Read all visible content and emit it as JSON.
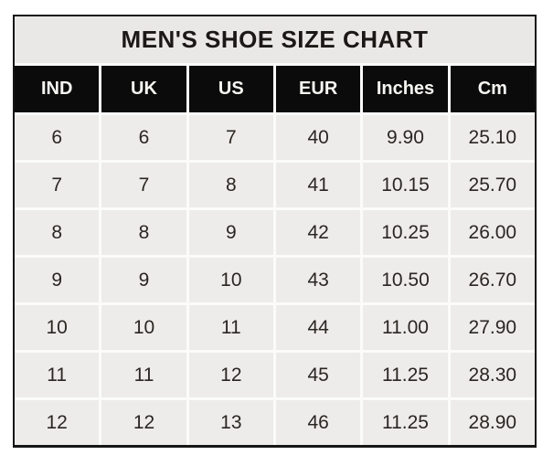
{
  "title": "MEN'S SHOE SIZE CHART",
  "chart_data": {
    "type": "table",
    "title": "MEN'S SHOE SIZE CHART",
    "columns": [
      "IND",
      "UK",
      "US",
      "EUR",
      "Inches",
      "Cm"
    ],
    "rows": [
      [
        "6",
        "6",
        "7",
        "40",
        "9.90",
        "25.10"
      ],
      [
        "7",
        "7",
        "8",
        "41",
        "10.15",
        "25.70"
      ],
      [
        "8",
        "8",
        "9",
        "42",
        "10.25",
        "26.00"
      ],
      [
        "9",
        "9",
        "10",
        "43",
        "10.50",
        "26.70"
      ],
      [
        "10",
        "10",
        "11",
        "44",
        "11.00",
        "27.90"
      ],
      [
        "11",
        "11",
        "12",
        "45",
        "11.25",
        "28.30"
      ],
      [
        "12",
        "12",
        "13",
        "46",
        "11.25",
        "28.90"
      ]
    ]
  },
  "colors": {
    "border": "#161616",
    "grid_line": "#fbfbfb",
    "title_bg": "#e9e8e6",
    "title_text": "#1b1815",
    "header_bg": "#0b0b0b",
    "header_text": "#f7f5f1",
    "cell_bg": "#edecea",
    "cell_text": "#2a2622",
    "page_bg": "#ffffff"
  }
}
